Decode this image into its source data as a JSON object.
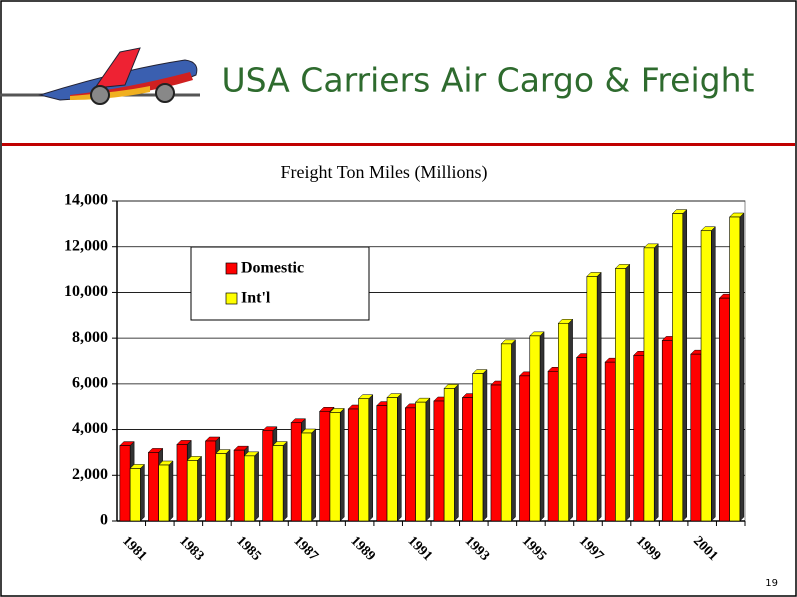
{
  "header": {
    "title": "USA Carriers Air Cargo & Freight"
  },
  "page_number": "19",
  "chart_data": {
    "type": "bar",
    "title": "Freight Ton Miles (Millions)",
    "categories": [
      "1981",
      null,
      "1983",
      null,
      "1985",
      null,
      "1987",
      null,
      "1989",
      null,
      "1991",
      null,
      "1993",
      null,
      "1995",
      null,
      "1997",
      null,
      "1999",
      null,
      "2001",
      null
    ],
    "series": [
      {
        "name": "Domestic",
        "color": "#ff0000",
        "values": [
          3300,
          3000,
          3350,
          3500,
          3100,
          3950,
          4300,
          4800,
          4900,
          5050,
          4950,
          5250,
          5400,
          5950,
          6350,
          6550,
          7150,
          6950,
          7250,
          7900,
          7300,
          9750
        ]
      },
      {
        "name": "Int'l",
        "color": "#ffff00",
        "values": [
          2300,
          2450,
          2650,
          2950,
          2850,
          3300,
          3850,
          4750,
          5350,
          5400,
          5200,
          5800,
          6450,
          7750,
          8100,
          8650,
          10700,
          11050,
          11950,
          13450,
          12700,
          13300
        ]
      }
    ],
    "ylim": [
      0,
      14000
    ],
    "yticks": [
      0,
      {
        "value": 2000,
        "label": "2,000"
      },
      {
        "value": 4000,
        "label": "4,000"
      },
      {
        "value": 6000,
        "label": "6,000"
      },
      {
        "value": 8000,
        "label": "8,000"
      },
      {
        "value": 10000,
        "label": "10,000"
      },
      {
        "value": 12000,
        "label": "12,000"
      },
      {
        "value": 14000,
        "label": "14,000"
      }
    ],
    "grid": true
  }
}
